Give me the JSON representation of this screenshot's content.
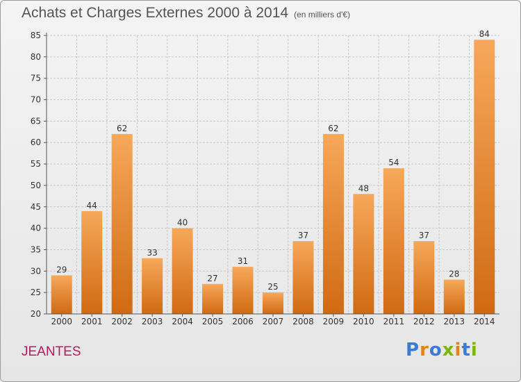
{
  "title": "Achats et Charges Externes 2000 à 2014",
  "subtitle": "(en milliers d'€)",
  "commune": "JEANTES",
  "logo": {
    "text": "Proxiti",
    "letter_colors": [
      "#3a7bd5",
      "#e8821e",
      "#3a7bd5",
      "#7ab800",
      "#e8821e",
      "#3a7bd5",
      "#7ab800"
    ]
  },
  "colors": {
    "bar_top": "#f7a85a",
    "bar_bottom": "#d06a12",
    "grid": "#c8c8c8",
    "axis_text": "#333333"
  },
  "chart_data": {
    "type": "bar",
    "categories": [
      "2000",
      "2001",
      "2002",
      "2003",
      "2004",
      "2005",
      "2006",
      "2007",
      "2008",
      "2009",
      "2010",
      "2011",
      "2012",
      "2013",
      "2014"
    ],
    "values": [
      29,
      44,
      62,
      33,
      40,
      27,
      31,
      25,
      37,
      62,
      48,
      54,
      37,
      28,
      84
    ],
    "ylim": [
      20,
      85
    ],
    "yticks": [
      20,
      25,
      30,
      35,
      40,
      45,
      50,
      55,
      60,
      65,
      70,
      75,
      80,
      85
    ],
    "grid": true,
    "data_labels": true
  }
}
